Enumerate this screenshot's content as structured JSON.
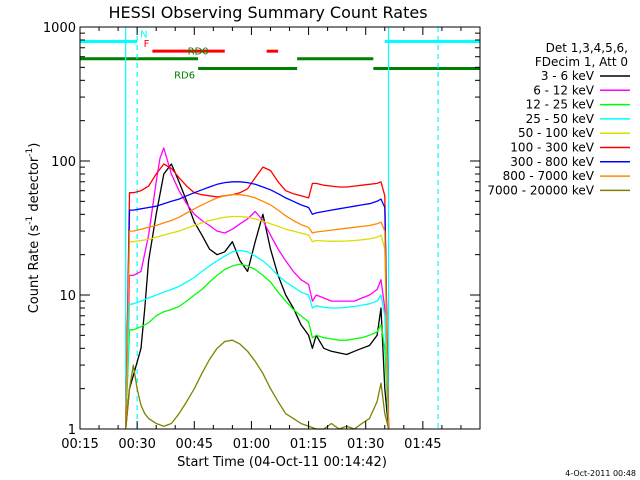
{
  "chart_data": {
    "type": "line",
    "title": "HESSI Observing Summary Count Rates",
    "xlabel": "Start Time (04-Oct-11 00:14:42)",
    "ylabel_main": "Count Rate (s",
    "ylabel_sup1": "-1",
    "ylabel_mid": " detector",
    "ylabel_sup2": "-1",
    "ylabel_end": ")",
    "y_scale": "log",
    "ylim": [
      1,
      1000
    ],
    "xlim_minutes": [
      0,
      105
    ],
    "x_ticks": [
      {
        "t": 0,
        "label": "00:15"
      },
      {
        "t": 15,
        "label": "00:30"
      },
      {
        "t": 30,
        "label": "00:45"
      },
      {
        "t": 45,
        "label": "01:00"
      },
      {
        "t": 60,
        "label": "01:15"
      },
      {
        "t": 75,
        "label": "01:30"
      },
      {
        "t": 90,
        "label": "01:45"
      }
    ],
    "y_ticks": [
      {
        "v": 1,
        "label": "1"
      },
      {
        "v": 10,
        "label": "10"
      },
      {
        "v": 100,
        "label": "100"
      },
      {
        "v": 1000,
        "label": "1000"
      }
    ],
    "legend": {
      "position": "top-right",
      "header": [
        "Det 1,3,4,5,6,",
        "FDecim 1, Att 0"
      ]
    },
    "series": [
      {
        "name": "3 - 6 keV",
        "color": "#000000",
        "t": [
          12,
          13,
          14,
          16,
          17,
          18,
          20,
          22,
          24,
          26,
          28,
          30,
          32,
          34,
          36,
          38,
          40,
          42,
          44,
          46,
          48,
          50,
          52,
          54,
          56,
          58,
          60,
          61,
          62,
          64,
          66,
          68,
          70,
          72,
          74,
          76,
          78,
          79,
          80,
          81
        ],
        "v": [
          1,
          2,
          2.5,
          4,
          8,
          18,
          40,
          80,
          95,
          70,
          50,
          35,
          28,
          22,
          20,
          21,
          25,
          18,
          15,
          25,
          40,
          22,
          14,
          10,
          8,
          6,
          5,
          4,
          5,
          4,
          3.8,
          3.7,
          3.6,
          3.8,
          4,
          4.2,
          5,
          8,
          2,
          1
        ]
      },
      {
        "name": "6 - 12 keV",
        "color": "#ff00ff",
        "t": [
          12,
          13,
          14,
          16,
          18,
          20,
          21,
          22,
          23,
          24,
          26,
          28,
          30,
          32,
          34,
          36,
          38,
          40,
          42,
          44,
          46,
          48,
          50,
          52,
          54,
          56,
          58,
          60,
          61,
          62,
          64,
          66,
          68,
          70,
          72,
          74,
          76,
          78,
          79,
          80,
          81
        ],
        "v": [
          1,
          14,
          14,
          15,
          28,
          70,
          105,
          125,
          100,
          80,
          60,
          48,
          40,
          36,
          33,
          30,
          29,
          31,
          34,
          37,
          42,
          36,
          28,
          22,
          18,
          15,
          13,
          12,
          9,
          10,
          9.5,
          9,
          9,
          9,
          9,
          9.5,
          10,
          11,
          13,
          8,
          1
        ]
      },
      {
        "name": "12 - 25 keV",
        "color": "#00ff00",
        "t": [
          12,
          13,
          14,
          16,
          18,
          20,
          22,
          24,
          26,
          28,
          30,
          32,
          34,
          36,
          38,
          40,
          42,
          44,
          46,
          48,
          50,
          52,
          54,
          56,
          58,
          60,
          61,
          62,
          64,
          66,
          68,
          70,
          72,
          74,
          76,
          78,
          79,
          80,
          81
        ],
        "v": [
          1,
          5.5,
          5.5,
          5.8,
          6.2,
          7,
          7.5,
          7.8,
          8.2,
          9,
          10,
          11,
          12.5,
          14,
          15.5,
          16.5,
          17,
          16.5,
          15.5,
          14,
          12.5,
          10.5,
          9,
          7.8,
          7,
          6.3,
          4.8,
          5,
          4.8,
          4.7,
          4.6,
          4.6,
          4.7,
          4.8,
          5,
          5.3,
          6,
          4,
          1
        ]
      },
      {
        "name": "25 - 50 keV",
        "color": "#00ffff",
        "t": [
          12,
          13,
          14,
          16,
          18,
          20,
          22,
          24,
          26,
          28,
          30,
          32,
          34,
          36,
          38,
          40,
          42,
          44,
          46,
          48,
          50,
          52,
          54,
          56,
          58,
          60,
          61,
          62,
          64,
          66,
          68,
          70,
          72,
          74,
          76,
          78,
          79,
          80,
          81
        ],
        "v": [
          1,
          8.5,
          8.6,
          9,
          9.5,
          10,
          10.5,
          11,
          11.6,
          12.5,
          13.5,
          15,
          16.5,
          18,
          19.5,
          21,
          21.5,
          21,
          19.5,
          18,
          16,
          14,
          12.5,
          11.5,
          10.5,
          10,
          8,
          8.3,
          8.1,
          8,
          8,
          8.1,
          8.2,
          8.4,
          8.6,
          9,
          10,
          7,
          1
        ]
      },
      {
        "name": "50 - 100 keV",
        "color": "#dddd00",
        "t": [
          12,
          13,
          14,
          16,
          18,
          20,
          22,
          24,
          26,
          28,
          30,
          32,
          34,
          36,
          38,
          40,
          42,
          44,
          46,
          48,
          50,
          52,
          54,
          56,
          58,
          60,
          61,
          62,
          64,
          66,
          68,
          70,
          72,
          74,
          76,
          78,
          79,
          80,
          81
        ],
        "v": [
          1,
          25,
          25,
          25.5,
          26,
          27,
          28,
          29,
          30,
          31.5,
          33,
          34.5,
          36,
          37,
          38,
          38.5,
          38.5,
          38,
          37,
          35.5,
          34,
          32.5,
          31,
          30,
          29,
          28,
          25,
          25.5,
          25.3,
          25.2,
          25.2,
          25.3,
          25.5,
          25.8,
          26.2,
          27,
          28,
          22,
          1
        ]
      },
      {
        "name": "100 - 300 keV",
        "color": "#ff0000",
        "t": [
          12,
          13,
          14,
          16,
          18,
          20,
          22,
          24,
          26,
          28,
          30,
          32,
          34,
          36,
          38,
          40,
          42,
          44,
          46,
          48,
          50,
          52,
          54,
          56,
          58,
          60,
          61,
          62,
          64,
          66,
          68,
          70,
          72,
          74,
          76,
          78,
          79,
          80,
          81
        ],
        "v": [
          1,
          58,
          58,
          60,
          65,
          80,
          95,
          88,
          75,
          65,
          58,
          56,
          55,
          54,
          55,
          56,
          58,
          62,
          75,
          90,
          85,
          70,
          60,
          57,
          55,
          53,
          68,
          68,
          66,
          65,
          64,
          64,
          65,
          66,
          67,
          68,
          70,
          55,
          1
        ]
      },
      {
        "name": "300 - 800 keV",
        "color": "#0000ff",
        "t": [
          12,
          13,
          14,
          16,
          18,
          20,
          22,
          24,
          26,
          28,
          30,
          32,
          34,
          36,
          38,
          40,
          42,
          44,
          46,
          48,
          50,
          52,
          54,
          56,
          58,
          60,
          61,
          62,
          64,
          66,
          68,
          70,
          72,
          74,
          76,
          78,
          79,
          80,
          81
        ],
        "v": [
          1,
          43,
          43,
          44,
          45,
          46,
          48,
          50,
          52,
          55,
          58,
          61,
          64,
          67,
          69,
          70,
          70,
          69,
          67,
          64,
          61,
          57,
          53,
          50,
          47,
          45,
          40,
          41,
          42,
          43,
          44,
          45,
          46,
          47,
          48,
          50,
          52,
          45,
          1
        ]
      },
      {
        "name": "800 - 7000 keV",
        "color": "#ff8800",
        "t": [
          12,
          13,
          14,
          16,
          18,
          20,
          22,
          24,
          26,
          28,
          30,
          32,
          34,
          36,
          38,
          40,
          42,
          44,
          46,
          48,
          50,
          52,
          54,
          56,
          58,
          60,
          61,
          62,
          64,
          66,
          68,
          70,
          72,
          74,
          76,
          78,
          79,
          80,
          81
        ],
        "v": [
          1,
          30,
          30,
          31,
          32,
          33,
          34.5,
          36,
          38,
          41,
          44,
          47,
          50,
          53,
          55,
          56,
          56,
          55,
          53,
          50,
          47,
          43,
          39,
          36,
          33.5,
          32,
          29,
          29.5,
          30,
          30.5,
          31,
          31.5,
          32,
          32.5,
          33,
          34,
          35,
          30,
          1
        ]
      },
      {
        "name": "7000 - 20000 keV",
        "color": "#808000",
        "t": [
          12,
          13,
          14,
          15,
          16,
          17,
          18,
          20,
          22,
          24,
          26,
          28,
          30,
          32,
          34,
          36,
          38,
          40,
          42,
          44,
          46,
          48,
          50,
          52,
          54,
          56,
          58,
          60,
          62,
          64,
          66,
          68,
          70,
          72,
          74,
          76,
          78,
          79,
          80,
          81
        ],
        "v": [
          1,
          2,
          3,
          2,
          1.5,
          1.3,
          1.2,
          1.1,
          1.05,
          1.1,
          1.3,
          1.6,
          2,
          2.6,
          3.3,
          4,
          4.5,
          4.6,
          4.3,
          3.8,
          3.2,
          2.6,
          2,
          1.6,
          1.3,
          1.2,
          1.1,
          1.05,
          1,
          1,
          1.1,
          1,
          1.05,
          1,
          1.1,
          1.2,
          1.6,
          2.2,
          1.3,
          1
        ]
      }
    ],
    "state_bars": [
      {
        "name": "N",
        "color": "#00ffff",
        "level": 780,
        "label": "N",
        "segments": [
          [
            0,
            15
          ],
          [
            80,
            105
          ]
        ]
      },
      {
        "name": "F",
        "color": "#ff0000",
        "level": 660,
        "label": "F",
        "segments": [
          [
            19,
            38
          ],
          [
            49,
            52
          ]
        ]
      },
      {
        "name": "RD0",
        "color": "#008000",
        "level": 580,
        "label": "RD0",
        "segments": [
          [
            0,
            31
          ],
          [
            57,
            77
          ]
        ]
      },
      {
        "name": "RD6",
        "color": "#008000",
        "level": 490,
        "label": "RD6",
        "segments": [
          [
            31,
            57
          ],
          [
            77,
            105
          ]
        ]
      }
    ],
    "vlines": {
      "solid": [
        12,
        81
      ],
      "dashed": [
        15,
        94
      ],
      "color": "#00ffff"
    },
    "footer_timestamp": "4-Oct-2011 00:48"
  }
}
